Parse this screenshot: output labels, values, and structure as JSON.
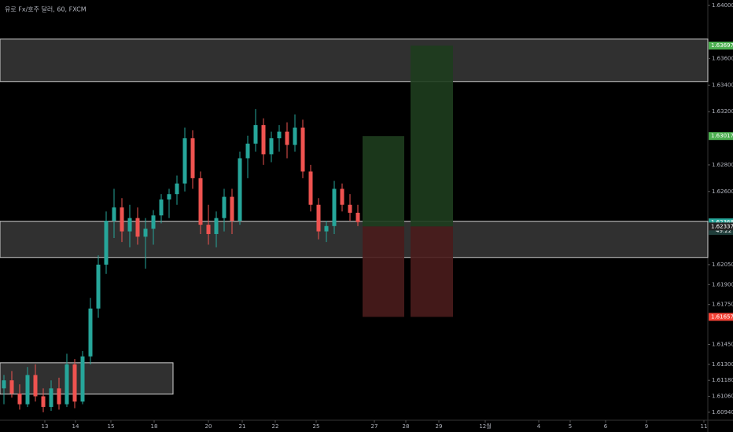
{
  "chart_data": {
    "type": "candlestick",
    "title": "유로 Fx/호주 달러, 60, FXCM",
    "x": [
      0,
      1,
      2,
      3,
      4,
      5,
      6,
      7,
      8,
      9,
      10,
      11,
      12,
      13,
      14,
      15,
      16,
      17,
      18,
      19,
      20,
      21,
      22,
      23,
      24,
      25,
      26,
      27,
      28,
      29,
      30,
      31,
      32,
      33,
      34,
      35,
      36,
      37,
      38,
      39,
      40,
      41,
      42,
      43,
      44,
      45
    ],
    "open": [
      1.6112,
      1.6118,
      1.6108,
      1.61,
      1.6122,
      1.6106,
      1.6098,
      1.6112,
      1.61,
      1.613,
      1.6102,
      1.6136,
      1.6172,
      1.6205,
      1.6238,
      1.6248,
      1.623,
      1.624,
      1.6226,
      1.6232,
      1.6242,
      1.6254,
      1.6258,
      1.6266,
      1.63,
      1.627,
      1.6235,
      1.6228,
      1.624,
      1.6256,
      1.6238,
      1.6285,
      1.6296,
      1.631,
      1.6288,
      1.63,
      1.6305,
      1.6295,
      1.6308,
      1.6275,
      1.625,
      1.623,
      1.6234,
      1.6262,
      1.625,
      1.6244
    ],
    "high": [
      1.6122,
      1.6125,
      1.6115,
      1.6128,
      1.613,
      1.6112,
      1.6118,
      1.612,
      1.6138,
      1.6134,
      1.614,
      1.618,
      1.6212,
      1.6245,
      1.6262,
      1.6255,
      1.625,
      1.6248,
      1.624,
      1.6246,
      1.6258,
      1.6262,
      1.6272,
      1.6308,
      1.6306,
      1.6275,
      1.625,
      1.6245,
      1.6262,
      1.6262,
      1.629,
      1.6302,
      1.6322,
      1.6315,
      1.6305,
      1.631,
      1.6312,
      1.6318,
      1.6314,
      1.628,
      1.6255,
      1.6238,
      1.6268,
      1.6266,
      1.6258,
      1.625
    ],
    "low": [
      1.61,
      1.6105,
      1.6096,
      1.6098,
      1.6102,
      1.6094,
      1.6095,
      1.6096,
      1.6098,
      1.6097,
      1.61,
      1.613,
      1.6165,
      1.6198,
      1.6225,
      1.6222,
      1.6218,
      1.622,
      1.6202,
      1.622,
      1.6236,
      1.624,
      1.625,
      1.626,
      1.6262,
      1.6228,
      1.622,
      1.6218,
      1.623,
      1.6228,
      1.6235,
      1.627,
      1.629,
      1.628,
      1.6282,
      1.629,
      1.6285,
      1.629,
      1.627,
      1.6245,
      1.6224,
      1.6222,
      1.6228,
      1.6245,
      1.6238,
      1.6234
    ],
    "close": [
      1.6118,
      1.6108,
      1.61,
      1.6122,
      1.6106,
      1.6098,
      1.6112,
      1.61,
      1.613,
      1.6102,
      1.6136,
      1.6172,
      1.6205,
      1.6238,
      1.6248,
      1.623,
      1.624,
      1.6226,
      1.6232,
      1.6242,
      1.6254,
      1.6258,
      1.6266,
      1.63,
      1.627,
      1.6235,
      1.6228,
      1.624,
      1.6256,
      1.6238,
      1.6285,
      1.6296,
      1.631,
      1.6288,
      1.63,
      1.6305,
      1.6295,
      1.6308,
      1.6275,
      1.625,
      1.623,
      1.6234,
      1.6262,
      1.625,
      1.6244,
      1.6237
    ],
    "up_color": "#26a69a",
    "down_color": "#ef5350",
    "xlim": [
      -0.5,
      89.5
    ],
    "ylim": [
      1.6404,
      1.6088
    ],
    "xticks": [
      {
        "value": 5.2,
        "label": "13"
      },
      {
        "value": 9.1,
        "label": "14"
      },
      {
        "value": 13.6,
        "label": "15"
      },
      {
        "value": 19.1,
        "label": "18"
      },
      {
        "value": 26,
        "label": "20"
      },
      {
        "value": 30.3,
        "label": "21"
      },
      {
        "value": 34.5,
        "label": "22"
      },
      {
        "value": 39.7,
        "label": "25"
      },
      {
        "value": 47.1,
        "label": "27"
      },
      {
        "value": 51.1,
        "label": "28"
      },
      {
        "value": 55.3,
        "label": "29"
      },
      {
        "value": 61.2,
        "label": "12월"
      },
      {
        "value": 68,
        "label": "4"
      },
      {
        "value": 72,
        "label": "5"
      },
      {
        "value": 76.5,
        "label": "6"
      },
      {
        "value": 81.7,
        "label": "9"
      },
      {
        "value": 89,
        "label": "11"
      }
    ],
    "yticks": [
      {
        "value": 1.64,
        "label": "1.64000"
      },
      {
        "value": 1.636,
        "label": "1.63600"
      },
      {
        "value": 1.634,
        "label": "1.63400"
      },
      {
        "value": 1.632,
        "label": "1.63200"
      },
      {
        "value": 1.628,
        "label": "1.62800"
      },
      {
        "value": 1.626,
        "label": "1.62600"
      },
      {
        "value": 1.6205,
        "label": "1.62050"
      },
      {
        "value": 1.619,
        "label": "1.61900"
      },
      {
        "value": 1.6175,
        "label": "1.61750"
      },
      {
        "value": 1.6145,
        "label": "1.61450"
      },
      {
        "value": 1.613,
        "label": "1.61300"
      },
      {
        "value": 1.6118,
        "label": "1.61180"
      },
      {
        "value": 1.6106,
        "label": "1.61060"
      },
      {
        "value": 1.6094,
        "label": "1.60940"
      }
    ],
    "zones": [
      {
        "x": [
          -0.5,
          89.5
        ],
        "y": [
          1.63746,
          1.63427
        ]
      },
      {
        "x": [
          -0.5,
          89.5
        ],
        "y": [
          1.62376,
          1.62104
        ]
      },
      {
        "x": [
          -0.5,
          21.5
        ],
        "y": [
          1.61312,
          1.61076
        ]
      }
    ],
    "zone_color": "#404040",
    "positions": [
      {
        "x": [
          45.6,
          50.9
        ],
        "entry": 1.62337,
        "target": 1.63017,
        "stop": 1.61657
      },
      {
        "x": [
          51.7,
          57.1
        ],
        "entry": 1.62337,
        "target": 1.63697,
        "stop": 1.61657
      }
    ],
    "profit_color": "#1e3d1e",
    "loss_color": "#4a1c1c",
    "price_labels": [
      {
        "value": 1.63697,
        "color": "#4caf50"
      },
      {
        "value": 1.63017,
        "color": "#4caf50"
      },
      {
        "value": 1.62368,
        "color": "#26a69a"
      },
      {
        "value": 1.62337,
        "color": "#222222"
      },
      {
        "value": 1.61657,
        "color": "#f44336"
      }
    ],
    "countdown": "49:22"
  }
}
